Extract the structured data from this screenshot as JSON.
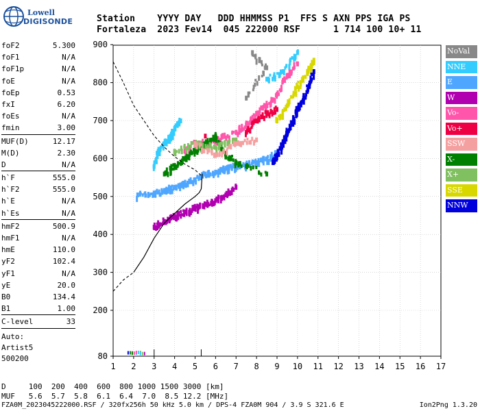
{
  "logo": {
    "line1": "Lowell",
    "line2": "DIGISONDE"
  },
  "header": {
    "line1": "Station    YYYY DAY   DDD HHMMSS P1  FFS S AXN PPS IGA PS",
    "line2": "Fortaleza  2023 Fev14  045 222000 RSF      1 714 100 10+ 11"
  },
  "params_group1": [
    {
      "k": "foF2",
      "v": "5.300"
    },
    {
      "k": "foF1",
      "v": "N/A"
    },
    {
      "k": "foF1p",
      "v": "N/A"
    },
    {
      "k": "foE",
      "v": "N/A"
    },
    {
      "k": "foEp",
      "v": "0.53"
    },
    {
      "k": "fxI",
      "v": "6.20"
    },
    {
      "k": "foEs",
      "v": "N/A"
    },
    {
      "k": "fmin",
      "v": "3.00"
    }
  ],
  "params_group2": [
    {
      "k": "MUF(D)",
      "v": "12.17"
    },
    {
      "k": "M(D)",
      "v": "2.30"
    },
    {
      "k": "D",
      "v": "N/A"
    }
  ],
  "params_group3": [
    {
      "k": "h`F",
      "v": "555.0"
    },
    {
      "k": "h`F2",
      "v": "555.0"
    },
    {
      "k": "h`E",
      "v": "N/A"
    },
    {
      "k": "h`Es",
      "v": "N/A"
    }
  ],
  "params_group4": [
    {
      "k": "hmF2",
      "v": "500.9"
    },
    {
      "k": "hmF1",
      "v": "N/A"
    },
    {
      "k": "hmE",
      "v": "110.0"
    },
    {
      "k": "yF2",
      "v": "102.4"
    },
    {
      "k": "yF1",
      "v": "N/A"
    },
    {
      "k": "yE",
      "v": "20.0"
    },
    {
      "k": "B0",
      "v": "134.4"
    },
    {
      "k": "B1",
      "v": "1.00"
    }
  ],
  "params_group5": [
    {
      "k": "C-level",
      "v": "33"
    }
  ],
  "auto": {
    "line1": "Auto:",
    "line2": "Artist5",
    "line3": "500200"
  },
  "legend": [
    {
      "label": "NoVal",
      "color": "#888888"
    },
    {
      "label": "NNE",
      "color": "#33ccff"
    },
    {
      "label": "E",
      "color": "#4fa6ff"
    },
    {
      "label": "W",
      "color": "#b000b0"
    },
    {
      "label": "Vo-",
      "color": "#ff55aa"
    },
    {
      "label": "Vo+",
      "color": "#ee0044"
    },
    {
      "label": "SSW",
      "color": "#f5a0a0"
    },
    {
      "label": "X-",
      "color": "#008000"
    },
    {
      "label": "X+",
      "color": "#80c060"
    },
    {
      "label": "SSE",
      "color": "#d8d800"
    },
    {
      "label": "NNW",
      "color": "#0000dd"
    }
  ],
  "footer": {
    "line1": "D     100  200  400  600  800 1000 1500 3000 [km]",
    "line2": "MUF   5.6  5.7  5.8  6.1  6.4  7.0  8.5 12.2 [MHz]",
    "line3": "FZA0M_2023045222000.RSF / 320fx256h 50 kHz 5.0 km / DPS-4 FZA0M 904 / 3.9 S 321.6 E",
    "version": "Ion2Png 1.3.20"
  },
  "chart_data": {
    "type": "scatter",
    "xlabel": "",
    "ylabel": "",
    "xlim": [
      1,
      17
    ],
    "ylim": [
      80,
      900
    ],
    "x_ticks": [
      1,
      2,
      3,
      4,
      5,
      6,
      7,
      8,
      9,
      10,
      11,
      12,
      13,
      14,
      15,
      16,
      17
    ],
    "y_ticks": [
      80,
      200,
      300,
      400,
      500,
      600,
      700,
      800,
      900
    ],
    "grid": true,
    "series": [
      {
        "name": "W",
        "color": "#b000b0",
        "points": [
          [
            3.0,
            420
          ],
          [
            3.5,
            435
          ],
          [
            4.0,
            450
          ],
          [
            4.5,
            460
          ],
          [
            5.0,
            470
          ],
          [
            5.5,
            480
          ],
          [
            6.0,
            490
          ],
          [
            6.5,
            505
          ],
          [
            7.0,
            525
          ]
        ]
      },
      {
        "name": "E",
        "color": "#4fa6ff",
        "points": [
          [
            2.2,
            505
          ],
          [
            3.0,
            510
          ],
          [
            3.5,
            515
          ],
          [
            4.0,
            525
          ],
          [
            4.5,
            535
          ],
          [
            5.0,
            545
          ],
          [
            5.5,
            560
          ],
          [
            6.0,
            565
          ],
          [
            6.5,
            575
          ],
          [
            7.0,
            580
          ],
          [
            7.5,
            585
          ],
          [
            8.0,
            590
          ],
          [
            8.5,
            600
          ],
          [
            9.0,
            615
          ]
        ]
      },
      {
        "name": "NNW",
        "color": "#0000dd",
        "points": [
          [
            8.8,
            590
          ],
          [
            9.0,
            610
          ],
          [
            9.3,
            640
          ],
          [
            9.5,
            670
          ],
          [
            9.8,
            700
          ],
          [
            10.0,
            730
          ],
          [
            10.3,
            760
          ],
          [
            10.6,
            800
          ],
          [
            10.8,
            830
          ]
        ]
      },
      {
        "name": "NNE",
        "color": "#33ccff",
        "points": [
          [
            3.0,
            580
          ],
          [
            3.2,
            620
          ],
          [
            3.5,
            640
          ],
          [
            3.8,
            660
          ],
          [
            4.0,
            680
          ],
          [
            4.3,
            700
          ],
          [
            10.0,
            880
          ],
          [
            9.3,
            830
          ],
          [
            8.5,
            810
          ]
        ]
      },
      {
        "name": "Vo-",
        "color": "#ff55aa",
        "points": [
          [
            4.5,
            620
          ],
          [
            5.0,
            640
          ],
          [
            6.0,
            650
          ],
          [
            7.0,
            670
          ],
          [
            7.5,
            690
          ],
          [
            8.0,
            720
          ],
          [
            8.5,
            740
          ],
          [
            9.0,
            770
          ],
          [
            9.5,
            820
          ],
          [
            10.0,
            850
          ]
        ]
      },
      {
        "name": "X-",
        "color": "#008000",
        "points": [
          [
            3.5,
            560
          ],
          [
            4.0,
            580
          ],
          [
            4.5,
            600
          ],
          [
            5.0,
            620
          ],
          [
            5.5,
            640
          ],
          [
            6.0,
            660
          ],
          [
            6.5,
            610
          ],
          [
            7.0,
            590
          ],
          [
            8.5,
            560
          ]
        ]
      },
      {
        "name": "SSE",
        "color": "#d8d800",
        "points": [
          [
            9.0,
            700
          ],
          [
            9.5,
            740
          ],
          [
            10.0,
            790
          ],
          [
            10.5,
            830
          ],
          [
            10.8,
            860
          ]
        ]
      },
      {
        "name": "Vo+",
        "color": "#ee0044",
        "points": [
          [
            7.5,
            670
          ],
          [
            8.0,
            700
          ],
          [
            8.5,
            720
          ],
          [
            9.0,
            730
          ],
          [
            5.5,
            660
          ]
        ]
      },
      {
        "name": "X+",
        "color": "#80c060",
        "points": [
          [
            4.0,
            620
          ],
          [
            5.0,
            640
          ],
          [
            6.0,
            630
          ],
          [
            7.0,
            650
          ]
        ]
      },
      {
        "name": "SSW",
        "color": "#f5a0a0",
        "points": [
          [
            5.0,
            640
          ],
          [
            6.0,
            610
          ],
          [
            7.0,
            640
          ],
          [
            8.0,
            650
          ]
        ]
      },
      {
        "name": "NoVal",
        "color": "#888888",
        "points": [
          [
            7.8,
            880
          ],
          [
            8.5,
            840
          ],
          [
            7.5,
            760
          ]
        ]
      }
    ],
    "es_echoes": [
      [
        1.9,
        88
      ],
      [
        2.1,
        87
      ],
      [
        2.3,
        89
      ],
      [
        2.5,
        86
      ]
    ],
    "profile_line": [
      [
        2.0,
        300
      ],
      [
        2.5,
        340
      ],
      [
        3.0,
        390
      ],
      [
        3.5,
        430
      ],
      [
        4.0,
        455
      ],
      [
        4.5,
        480
      ],
      [
        5.0,
        500
      ],
      [
        5.2,
        510
      ],
      [
        5.3,
        520
      ],
      [
        5.35,
        560
      ]
    ],
    "profile_extrapolation": [
      [
        1.0,
        250
      ],
      [
        1.5,
        280
      ],
      [
        2.0,
        300
      ]
    ],
    "topside_dashed": [
      [
        1.0,
        855
      ],
      [
        1.5,
        800
      ],
      [
        2.0,
        740
      ],
      [
        2.5,
        700
      ],
      [
        3.0,
        660
      ],
      [
        3.5,
        630
      ],
      [
        4.0,
        605
      ],
      [
        4.5,
        585
      ],
      [
        5.0,
        570
      ],
      [
        5.3,
        555
      ]
    ],
    "fmin_mark": 3.0,
    "foF2_mark": 5.3
  }
}
